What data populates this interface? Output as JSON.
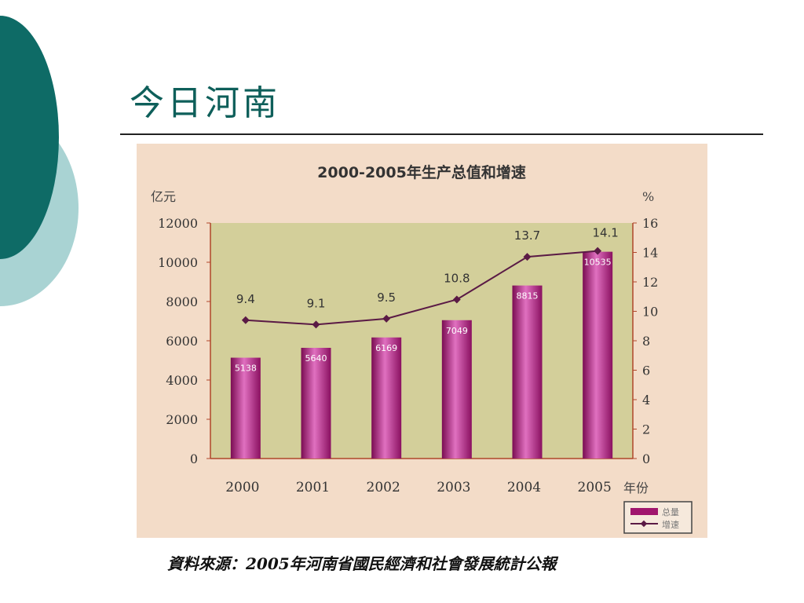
{
  "slide": {
    "title": "今日河南",
    "source": "資料來源：2005年河南省國民經濟和社會發展統計公報"
  },
  "chart_data": {
    "type": "bar",
    "title": "2000-2005年生产总值和增速",
    "xlabel": "年份",
    "ylabel": "亿元",
    "y2label": "%",
    "categories": [
      "2000",
      "2001",
      "2002",
      "2003",
      "2004",
      "2005"
    ],
    "ylim": [
      0,
      12000
    ],
    "y_ticks": [
      0,
      2000,
      4000,
      6000,
      8000,
      10000,
      12000
    ],
    "y2lim": [
      0,
      16
    ],
    "y2_ticks": [
      0,
      2,
      4,
      6,
      8,
      10,
      12,
      14,
      16
    ],
    "series": [
      {
        "name": "总量",
        "type": "bar",
        "axis": "left",
        "values": [
          5138,
          5640,
          6169,
          7049,
          8815,
          10535
        ],
        "color": "#a0166e"
      },
      {
        "name": "增速",
        "type": "line",
        "axis": "right",
        "values": [
          9.4,
          9.1,
          9.5,
          10.8,
          13.7,
          14.1
        ],
        "color": "#5a1a45"
      }
    ],
    "legend": {
      "position": "bottom-right",
      "entries": [
        "总量",
        "增速"
      ]
    },
    "plot_bg": "#d3cf9a"
  }
}
